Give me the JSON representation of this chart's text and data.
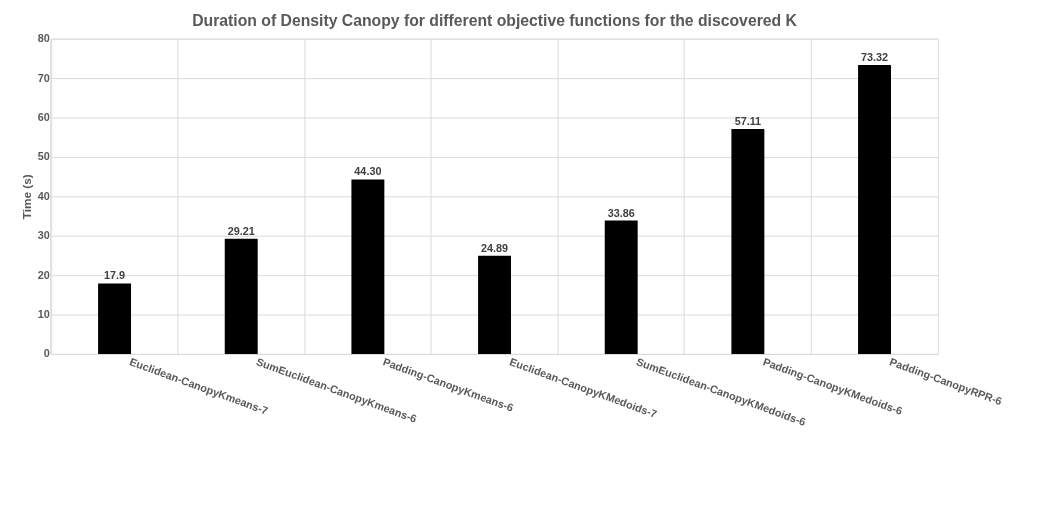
{
  "chart_data": {
    "type": "bar",
    "title": "Duration of Density Canopy for different objective functions for the discovered K",
    "ylabel": "Time (s)",
    "categories": [
      "Euclidean-CanopyKmeans-7",
      "SumEuclidean-CanopyKmeans-6",
      "Padding-CanopyKmeans-6",
      "Euclidean-CanopyKMedoids-7",
      "SumEuclidean-CanopyKMedoids-6",
      "Padding-CanopyKMedoids-6",
      "Padding-CanopyRPR-6"
    ],
    "values": [
      17.9,
      29.21,
      44.3,
      24.89,
      33.86,
      57.11,
      73.32
    ],
    "value_labels": [
      "17.9",
      "29.21",
      "44.30",
      "24.89",
      "33.86",
      "57.11",
      "73.32"
    ],
    "color": "#000000",
    "ylim": [
      0,
      80
    ],
    "yticks": [
      0,
      10,
      20,
      30,
      40,
      50,
      60,
      70,
      80
    ],
    "grid": true
  }
}
